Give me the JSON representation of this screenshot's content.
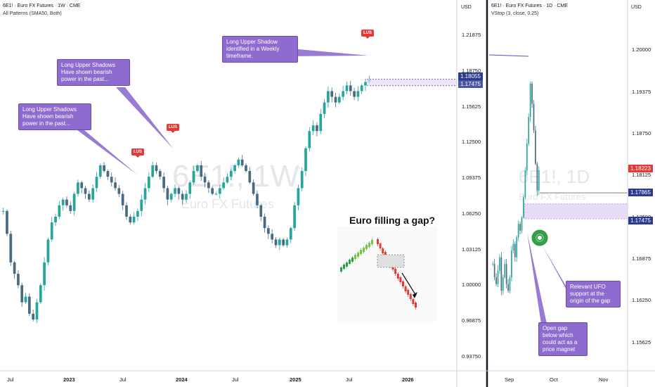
{
  "left_chart": {
    "symbol_line": "6E1! · Euro FX Futures · 1W · CME",
    "indicator_line": "All Patterns (SMA50, Both)",
    "watermark_symbol": "6E1!, 1W",
    "watermark_name": "Euro FX Futures",
    "currency": "USD",
    "y_ticks": [
      "1.21875",
      "1.18750",
      "1.15625",
      "1.12500",
      "1.09375",
      "1.06250",
      "1.03125",
      "1.00000",
      "0.96875",
      "0.93750"
    ],
    "x_ticks": [
      "Jul",
      "2023",
      "Jul",
      "2024",
      "Jul",
      "2025",
      "Jul",
      "2026"
    ],
    "last_price": "1.18055",
    "second_price": "1.17475",
    "callouts": [
      "Long Upper Shadows\nHave shown bearish\npower in the past...",
      "Long Upper Shadows\nHave shown bearish\npower in the past...",
      "Long Upper Shadow\nidentified in a Weekly\ntimeframe."
    ],
    "lus_label": "LUS",
    "inset_title": "Euro filling a gap?"
  },
  "right_chart": {
    "symbol_line": "6E1! · Euro FX Futures · 1D · CME",
    "indicator_line": "VStop (3, close, 0.25)",
    "watermark_symbol": "6E1!, 1D",
    "watermark_name": "Euro FX Futures",
    "currency": "USD",
    "y_ticks": [
      "1.20000",
      "1.19375",
      "1.18750",
      "1.18125",
      "1.17500",
      "1.16875",
      "1.16250",
      "1.15625"
    ],
    "x_ticks": [
      "Sep",
      "Oct",
      "Nov"
    ],
    "last_price": "1.18223",
    "vstop_price": "1.17865",
    "gap_price": "1.17475",
    "callouts": [
      "Relevant UFO\nsupport at the\norigin of the gap",
      "Open gap\nbelow which\ncould act as a\nprice magnet"
    ]
  },
  "colors": {
    "up": "#26a69a",
    "down": "#4a6a82",
    "callout": "#8e6ccf",
    "lus": "#e53935",
    "gap_zone": "#e6dcf7"
  },
  "chart_data": [
    {
      "type": "candlestick",
      "title": "6E1! · Euro FX Futures · 1W · CME",
      "x_ticks": [
        "Jul",
        "2023",
        "Jul",
        "2024",
        "Jul",
        "2025",
        "Jul",
        "2026"
      ],
      "ylim": [
        0.925,
        1.235
      ],
      "close_path": [
        1.065,
        1.045,
        1.02,
        1.01,
        1.0,
        0.985,
        0.99,
        0.975,
        0.97,
        0.985,
        1.0,
        1.02,
        1.04,
        1.055,
        1.06,
        1.07,
        1.075,
        1.07,
        1.065,
        1.08,
        1.09,
        1.085,
        1.08,
        1.075,
        1.085,
        1.095,
        1.105,
        1.1,
        1.095,
        1.09,
        1.085,
        1.08,
        1.07,
        1.06,
        1.055,
        1.06,
        1.065,
        1.075,
        1.085,
        1.095,
        1.105,
        1.1,
        1.095,
        1.085,
        1.075,
        1.08,
        1.085,
        1.08,
        1.075,
        1.08,
        1.09,
        1.1,
        1.105,
        1.095,
        1.09,
        1.085,
        1.08,
        1.08,
        1.085,
        1.09,
        1.095,
        1.1,
        1.105,
        1.11,
        1.105,
        1.1,
        1.09,
        1.08,
        1.07,
        1.06,
        1.05,
        1.045,
        1.04,
        1.035,
        1.04,
        1.035,
        1.04,
        1.05,
        1.07,
        1.085,
        1.1,
        1.12,
        1.135,
        1.14,
        1.135,
        1.15,
        1.16,
        1.17,
        1.165,
        1.16,
        1.165,
        1.17,
        1.175,
        1.17,
        1.165,
        1.17,
        1.175,
        1.178,
        1.18
      ],
      "annotations": [
        "LUS",
        "LUS",
        "LUS",
        "Euro filling a gap?"
      ],
      "last_price": 1.18055
    },
    {
      "type": "candlestick",
      "title": "6E1! · Euro FX Futures · 1D · CME",
      "x_ticks": [
        "Sep",
        "Oct",
        "Nov"
      ],
      "ylim": [
        1.152,
        1.205
      ],
      "close_path": [
        1.168,
        1.166,
        1.165,
        1.167,
        1.169,
        1.164,
        1.166,
        1.168,
        1.165,
        1.164,
        1.166,
        1.17,
        1.171,
        1.169,
        1.172,
        1.174,
        1.173,
        1.175,
        1.178,
        1.182,
        1.186,
        1.19,
        1.195,
        1.192,
        1.188,
        1.183,
        1.179,
        1.182
      ],
      "levels": [
        1.17865,
        1.17475
      ],
      "last_price": 1.18223
    }
  ]
}
